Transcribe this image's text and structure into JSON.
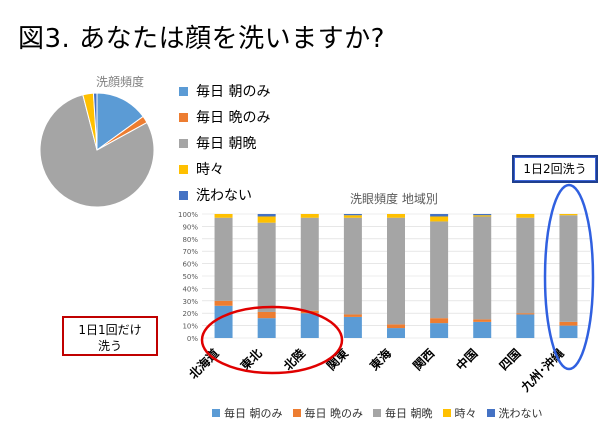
{
  "title": "図3. あなたは顔を洗いますか?",
  "colors": {
    "asa": "#5b9bd5",
    "ban": "#ed7d31",
    "asaban": "#a5a5a5",
    "tokidoki": "#ffc000",
    "arawanai": "#4472c4"
  },
  "legend": [
    "毎日 朝のみ",
    "毎日 晩のみ",
    "毎日 朝晩",
    "時々",
    "洗わない"
  ],
  "callouts": {
    "twice": "1日2回洗う",
    "once_line1": "1日1回だけ",
    "once_line2": "洗う"
  },
  "chart_data": [
    {
      "type": "pie",
      "title": "洗顔頻度",
      "categories": [
        "毎日 朝のみ",
        "毎日 晩のみ",
        "毎日 朝晩",
        "時々",
        "洗わない"
      ],
      "values": [
        15,
        2,
        79,
        3,
        1
      ]
    },
    {
      "type": "bar",
      "stacked": true,
      "title": "洗眼頻度 地域別",
      "categories": [
        "北海道",
        "東北",
        "北陸",
        "関東",
        "東海",
        "関西",
        "中国",
        "四国",
        "九州･沖縄"
      ],
      "ylim": [
        0,
        100
      ],
      "yticks": [
        "0%",
        "10%",
        "20%",
        "30%",
        "40%",
        "50%",
        "60%",
        "70%",
        "80%",
        "90%",
        "100%"
      ],
      "legend_position": "bottom",
      "series": [
        {
          "name": "毎日 朝のみ",
          "values": [
            26,
            16,
            20,
            17,
            8,
            12,
            13,
            19,
            10
          ]
        },
        {
          "name": "毎日 晩のみ",
          "values": [
            4,
            5,
            2,
            2,
            3,
            4,
            2,
            1,
            3
          ]
        },
        {
          "name": "毎日 朝晩",
          "values": [
            67,
            72,
            75,
            78,
            86,
            78,
            83,
            77,
            86
          ]
        },
        {
          "name": "時々",
          "values": [
            3,
            5,
            3,
            2,
            3,
            4,
            1,
            3,
            1
          ]
        },
        {
          "name": "洗わない",
          "values": [
            0,
            2,
            0,
            1,
            0,
            2,
            1,
            0,
            0
          ]
        }
      ]
    }
  ]
}
